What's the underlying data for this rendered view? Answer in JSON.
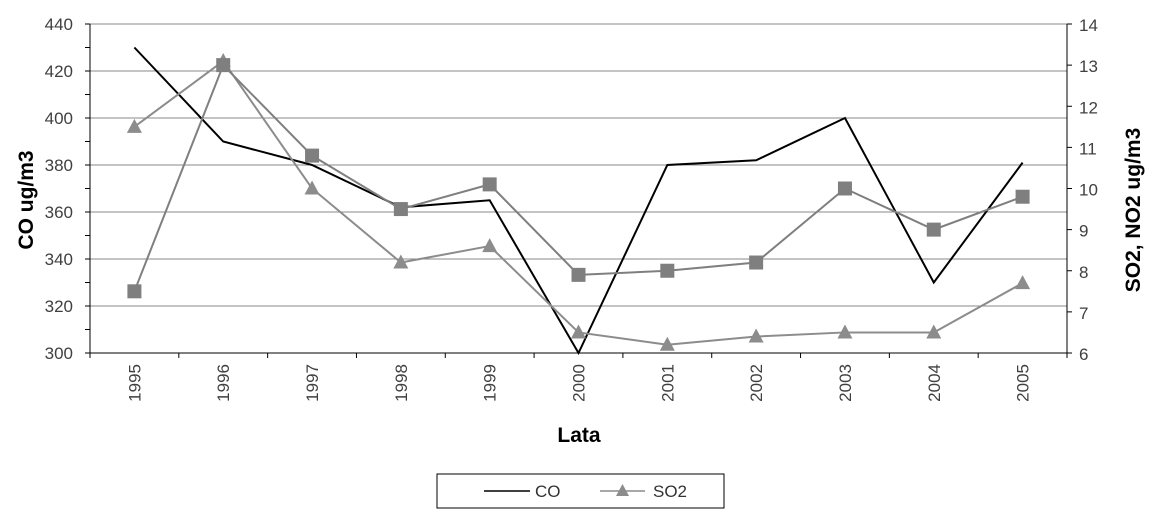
{
  "chart_data": {
    "type": "line",
    "xlabel": "Lata",
    "ylabel": "CO ug/m3",
    "y2label": "SO2, NO2 ug/m3",
    "categories": [
      "1995",
      "1996",
      "1997",
      "1998",
      "1999",
      "2000",
      "2001",
      "2002",
      "2003",
      "2004",
      "2005"
    ],
    "ylim": [
      300,
      440
    ],
    "yticks": [
      300,
      320,
      340,
      360,
      380,
      400,
      420,
      440
    ],
    "y2lim": [
      6,
      14
    ],
    "y2ticks": [
      6,
      7,
      8,
      9,
      10,
      11,
      12,
      13,
      14
    ],
    "grid": true,
    "legend_position": "bottom",
    "series": [
      {
        "name": "CO",
        "axis": "left",
        "marker": "none",
        "color": "#000000",
        "values": [
          430,
          390,
          380,
          362,
          365,
          300,
          380,
          382,
          400,
          330,
          381
        ]
      },
      {
        "name": "SO2",
        "axis": "right",
        "marker": "triangle",
        "color": "#8c8c8c",
        "values": [
          11.5,
          13.1,
          10.0,
          8.2,
          8.6,
          6.5,
          6.2,
          6.4,
          6.5,
          6.5,
          7.7
        ]
      },
      {
        "name": "",
        "axis": "right",
        "marker": "square",
        "color": "#7f7f7f",
        "values": [
          7.5,
          13.0,
          10.8,
          9.5,
          10.1,
          7.9,
          8.0,
          8.2,
          10.0,
          9.0,
          9.8
        ]
      }
    ]
  },
  "legend": {
    "co_label": "CO",
    "so2_label": "SO2"
  }
}
